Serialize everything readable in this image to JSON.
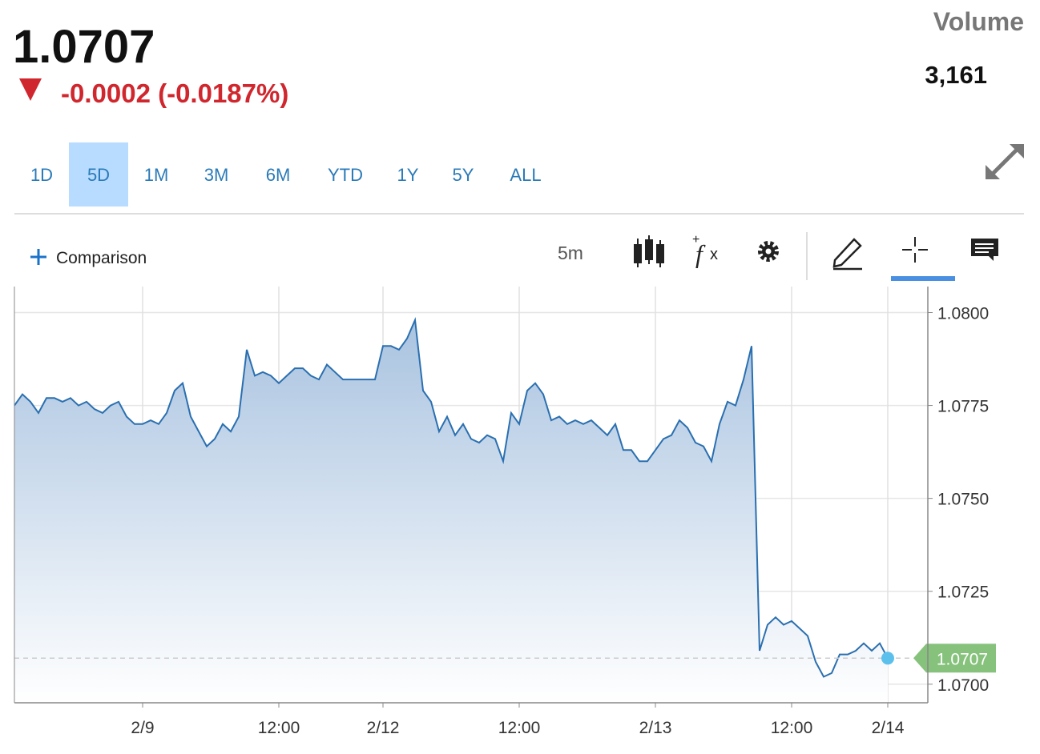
{
  "header": {
    "price": "1.0707",
    "change": "-0.0002 (-0.0187%)",
    "volume_label": "Volume",
    "volume": "3,161"
  },
  "ranges": [
    "1D",
    "5D",
    "1M",
    "3M",
    "6M",
    "YTD",
    "1Y",
    "5Y",
    "ALL"
  ],
  "active_range": 1,
  "toolbar": {
    "comparison": "Comparison",
    "interval": "5m"
  },
  "chart_data": {
    "type": "area",
    "color": "#2a6fb0",
    "grid": true,
    "values": [
      1.0775,
      1.0778,
      1.0776,
      1.0773,
      1.0777,
      1.0777,
      1.0776,
      1.0777,
      1.0775,
      1.0776,
      1.0774,
      1.0773,
      1.0775,
      1.0776,
      1.0772,
      1.077,
      1.077,
      1.0771,
      1.077,
      1.0773,
      1.0779,
      1.0781,
      1.0772,
      1.0768,
      1.0764,
      1.0766,
      1.077,
      1.0768,
      1.0772,
      1.079,
      1.0783,
      1.0784,
      1.0783,
      1.0781,
      1.0783,
      1.0785,
      1.0785,
      1.0783,
      1.0782,
      1.0786,
      1.0784,
      1.0782,
      1.0782,
      1.0782,
      1.0782,
      1.0782,
      1.0791,
      1.0791,
      1.079,
      1.0793,
      1.0798,
      1.0779,
      1.0776,
      1.0768,
      1.0772,
      1.0767,
      1.077,
      1.0766,
      1.0765,
      1.0767,
      1.0766,
      1.076,
      1.0773,
      1.077,
      1.0779,
      1.0781,
      1.0778,
      1.0771,
      1.0772,
      1.077,
      1.0771,
      1.077,
      1.0771,
      1.0769,
      1.0767,
      1.077,
      1.0763,
      1.0763,
      1.076,
      1.076,
      1.0763,
      1.0766,
      1.0767,
      1.0771,
      1.0769,
      1.0765,
      1.0764,
      1.076,
      1.077,
      1.0776,
      1.0775,
      1.0782,
      1.0791,
      1.0709,
      1.0716,
      1.0718,
      1.0716,
      1.0717,
      1.0715,
      1.0713,
      1.0706,
      1.0702,
      1.0703,
      1.0708,
      1.0708,
      1.0709,
      1.0711,
      1.0709,
      1.0711,
      1.0707
    ],
    "xlim": [
      0,
      114
    ],
    "xticks": [
      {
        "value": 16,
        "label": "2/9"
      },
      {
        "value": 33,
        "label": "12:00"
      },
      {
        "value": 46,
        "label": "2/12"
      },
      {
        "value": 63,
        "label": "12:00"
      },
      {
        "value": 80,
        "label": "2/13"
      },
      {
        "value": 97,
        "label": "12:00"
      },
      {
        "value": 109,
        "label": "2/14"
      }
    ],
    "ylim": [
      1.0695,
      1.0807
    ],
    "yticks": [
      {
        "value": 1.07,
        "label": "1.0700"
      },
      {
        "value": 1.0725,
        "label": "1.0725"
      },
      {
        "value": 1.075,
        "label": "1.0750"
      },
      {
        "value": 1.0775,
        "label": "1.0775"
      },
      {
        "value": 1.08,
        "label": "1.0800"
      }
    ]
  }
}
